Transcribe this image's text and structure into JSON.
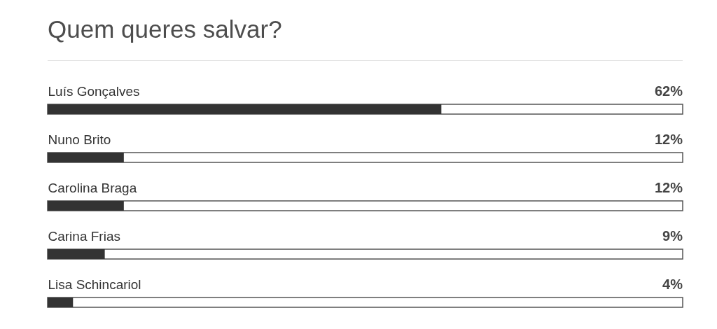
{
  "chart_data": {
    "type": "bar",
    "title": "Quem queres salvar?",
    "orientation": "horizontal",
    "categories": [
      "Luís Gonçalves",
      "Nuno Brito",
      "Carolina Braga",
      "Carina Frias",
      "Lisa Schincariol"
    ],
    "values": [
      62,
      12,
      12,
      9,
      4
    ],
    "value_labels": [
      "62%",
      "12%",
      "12%",
      "9%",
      "4%"
    ],
    "color": "#333333",
    "xlim": [
      0,
      100
    ],
    "tick_labels": "y"
  }
}
